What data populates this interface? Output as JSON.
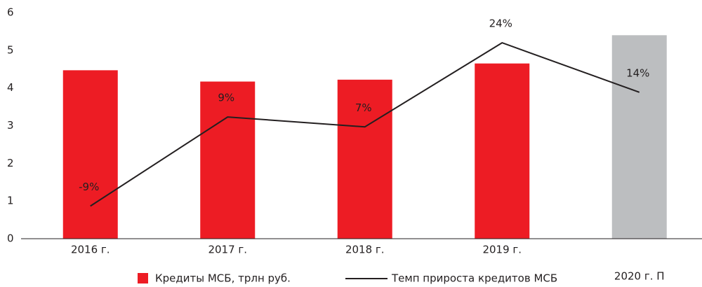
{
  "chart_data": {
    "type": "bar",
    "categories": [
      "2016 г.",
      "2017 г.",
      "2018 г.",
      "2019 г.",
      "2020 г. П"
    ],
    "ylim": [
      0,
      6
    ],
    "yticks": [
      0,
      1,
      2,
      3,
      4,
      5,
      6
    ],
    "y2lim": [
      -15.6,
      30.1
    ],
    "series": [
      {
        "name": "Кредиты МСБ, трлн руб.",
        "type": "bar",
        "color": "#ed1c24",
        "colors": [
          "#ed1c24",
          "#ed1c24",
          "#ed1c24",
          "#ed1c24",
          "#bcbec0"
        ],
        "values": [
          4.47,
          4.17,
          4.22,
          4.65,
          5.4
        ]
      },
      {
        "name": "Темп прироста кредитов МСБ",
        "type": "line",
        "axis": "y2",
        "color": "#231f20",
        "values": [
          -9,
          9,
          7,
          24,
          14
        ],
        "value_labels": [
          "-9%",
          "9%",
          "7%",
          "24%",
          "14%"
        ]
      }
    ]
  }
}
